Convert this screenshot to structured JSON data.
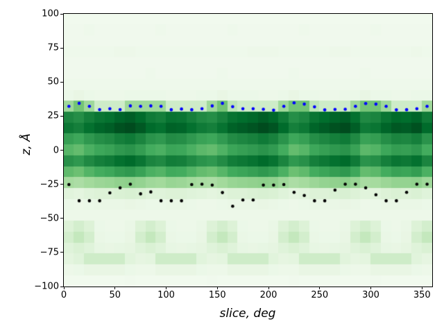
{
  "figure": {
    "background": "#ffffff",
    "spine_color": "#000000"
  },
  "chart_data": {
    "type": "heatmap",
    "title": "",
    "xlabel": "slice, deg",
    "ylabel": "z, Å",
    "xlim": [
      0,
      360
    ],
    "ylim": [
      -100,
      100
    ],
    "grid": false,
    "legend": "none",
    "x_tick_values": [
      0,
      50,
      100,
      150,
      200,
      250,
      300,
      350
    ],
    "x_tick_labels": [
      "0",
      "50",
      "100",
      "150",
      "200",
      "250",
      "300",
      "350"
    ],
    "y_tick_values": [
      100,
      75,
      50,
      25,
      0,
      -25,
      -50,
      -75,
      -100
    ],
    "y_tick_labels": [
      "100",
      "75",
      "50",
      "25",
      "0",
      "−25",
      "−50",
      "−75",
      "−100"
    ],
    "colormap": {
      "name": "Greens",
      "anchors": [
        "#f7fcf5",
        "#e5f5e0",
        "#c7e9c0",
        "#a1d99b",
        "#74c476",
        "#41ab5d",
        "#238b45",
        "#006d2c",
        "#00441b"
      ]
    },
    "heatmap": {
      "cols": 36,
      "rows": 25,
      "x_range_deg": [
        0,
        360
      ],
      "z_range_top_to_bottom": [
        100,
        -100
      ],
      "values": [
        [
          0.04,
          0.04,
          0.04,
          0.04,
          0.04,
          0.04,
          0.04,
          0.04,
          0.04,
          0.04,
          0.04,
          0.04,
          0.04,
          0.04,
          0.04,
          0.04,
          0.04,
          0.04,
          0.04,
          0.04,
          0.04,
          0.04,
          0.04,
          0.04,
          0.04,
          0.04,
          0.04,
          0.04,
          0.04,
          0.04,
          0.04,
          0.04,
          0.04,
          0.04,
          0.04,
          0.04
        ],
        [
          0.05,
          0.05,
          0.06,
          0.05,
          0.05,
          0.05,
          0.05,
          0.05,
          0.05,
          0.06,
          0.05,
          0.05,
          0.05,
          0.05,
          0.05,
          0.05,
          0.06,
          0.05,
          0.05,
          0.05,
          0.05,
          0.05,
          0.05,
          0.06,
          0.05,
          0.05,
          0.05,
          0.05,
          0.05,
          0.05,
          0.06,
          0.05,
          0.05,
          0.05,
          0.05,
          0.05
        ],
        [
          0.05,
          0.05,
          0.05,
          0.05,
          0.05,
          0.05,
          0.05,
          0.05,
          0.05,
          0.05,
          0.05,
          0.05,
          0.05,
          0.05,
          0.05,
          0.05,
          0.05,
          0.05,
          0.05,
          0.05,
          0.05,
          0.05,
          0.05,
          0.05,
          0.05,
          0.05,
          0.05,
          0.05,
          0.05,
          0.05,
          0.05,
          0.05,
          0.05,
          0.05,
          0.05,
          0.05
        ],
        [
          0.06,
          0.06,
          0.06,
          0.06,
          0.06,
          0.07,
          0.07,
          0.06,
          0.06,
          0.06,
          0.06,
          0.06,
          0.06,
          0.06,
          0.06,
          0.06,
          0.06,
          0.06,
          0.07,
          0.07,
          0.07,
          0.06,
          0.06,
          0.06,
          0.06,
          0.06,
          0.07,
          0.07,
          0.06,
          0.06,
          0.06,
          0.06,
          0.06,
          0.06,
          0.07,
          0.06
        ],
        [
          0.05,
          0.05,
          0.05,
          0.05,
          0.05,
          0.05,
          0.05,
          0.05,
          0.05,
          0.05,
          0.05,
          0.05,
          0.05,
          0.05,
          0.05,
          0.05,
          0.05,
          0.05,
          0.05,
          0.05,
          0.05,
          0.05,
          0.05,
          0.05,
          0.05,
          0.05,
          0.05,
          0.05,
          0.05,
          0.05,
          0.05,
          0.05,
          0.05,
          0.05,
          0.05,
          0.05
        ],
        [
          0.05,
          0.05,
          0.05,
          0.05,
          0.05,
          0.05,
          0.05,
          0.05,
          0.06,
          0.05,
          0.05,
          0.05,
          0.05,
          0.05,
          0.05,
          0.06,
          0.05,
          0.05,
          0.05,
          0.05,
          0.05,
          0.05,
          0.06,
          0.05,
          0.05,
          0.05,
          0.05,
          0.05,
          0.05,
          0.06,
          0.05,
          0.05,
          0.05,
          0.05,
          0.05,
          0.05
        ],
        [
          0.06,
          0.06,
          0.06,
          0.06,
          0.06,
          0.06,
          0.06,
          0.06,
          0.06,
          0.06,
          0.06,
          0.06,
          0.06,
          0.06,
          0.06,
          0.06,
          0.06,
          0.06,
          0.06,
          0.06,
          0.06,
          0.06,
          0.06,
          0.06,
          0.06,
          0.06,
          0.06,
          0.06,
          0.06,
          0.06,
          0.06,
          0.06,
          0.06,
          0.06,
          0.06,
          0.06
        ],
        [
          0.08,
          0.1,
          0.08,
          0.07,
          0.07,
          0.07,
          0.08,
          0.08,
          0.08,
          0.08,
          0.07,
          0.07,
          0.07,
          0.08,
          0.08,
          0.1,
          0.08,
          0.08,
          0.08,
          0.07,
          0.07,
          0.08,
          0.1,
          0.08,
          0.08,
          0.07,
          0.07,
          0.08,
          0.08,
          0.1,
          0.08,
          0.08,
          0.07,
          0.07,
          0.08,
          0.08
        ],
        [
          0.38,
          0.5,
          0.38,
          0.22,
          0.22,
          0.22,
          0.38,
          0.38,
          0.38,
          0.38,
          0.22,
          0.22,
          0.22,
          0.22,
          0.38,
          0.5,
          0.28,
          0.22,
          0.22,
          0.22,
          0.22,
          0.38,
          0.5,
          0.5,
          0.28,
          0.22,
          0.22,
          0.22,
          0.38,
          0.5,
          0.5,
          0.38,
          0.22,
          0.22,
          0.22,
          0.38
        ],
        [
          0.77,
          0.74,
          0.8,
          0.84,
          0.86,
          0.9,
          0.92,
          0.88,
          0.82,
          0.8,
          0.85,
          0.84,
          0.8,
          0.76,
          0.74,
          0.79,
          0.85,
          0.87,
          0.89,
          0.92,
          0.89,
          0.82,
          0.74,
          0.77,
          0.84,
          0.87,
          0.9,
          0.92,
          0.86,
          0.76,
          0.78,
          0.84,
          0.88,
          0.87,
          0.9,
          0.82
        ],
        [
          0.83,
          0.8,
          0.86,
          0.9,
          0.92,
          0.96,
          0.98,
          0.94,
          0.88,
          0.86,
          0.91,
          0.9,
          0.86,
          0.82,
          0.8,
          0.85,
          0.91,
          0.93,
          0.95,
          0.98,
          0.95,
          0.88,
          0.8,
          0.83,
          0.9,
          0.93,
          0.96,
          0.98,
          0.92,
          0.82,
          0.84,
          0.9,
          0.94,
          0.93,
          0.96,
          0.88
        ],
        [
          0.67,
          0.64,
          0.7,
          0.74,
          0.76,
          0.8,
          0.82,
          0.78,
          0.72,
          0.7,
          0.75,
          0.74,
          0.7,
          0.66,
          0.64,
          0.69,
          0.75,
          0.77,
          0.79,
          0.82,
          0.79,
          0.72,
          0.64,
          0.67,
          0.74,
          0.77,
          0.8,
          0.82,
          0.76,
          0.66,
          0.68,
          0.74,
          0.78,
          0.77,
          0.8,
          0.72
        ],
        [
          0.57,
          0.54,
          0.6,
          0.64,
          0.66,
          0.7,
          0.72,
          0.68,
          0.62,
          0.6,
          0.65,
          0.64,
          0.6,
          0.56,
          0.54,
          0.59,
          0.65,
          0.67,
          0.69,
          0.72,
          0.69,
          0.62,
          0.54,
          0.57,
          0.64,
          0.67,
          0.7,
          0.72,
          0.66,
          0.56,
          0.58,
          0.64,
          0.68,
          0.67,
          0.7,
          0.62
        ],
        [
          0.73,
          0.7,
          0.76,
          0.8,
          0.82,
          0.86,
          0.88,
          0.84,
          0.78,
          0.76,
          0.81,
          0.8,
          0.76,
          0.72,
          0.7,
          0.75,
          0.81,
          0.83,
          0.85,
          0.88,
          0.85,
          0.78,
          0.7,
          0.73,
          0.8,
          0.83,
          0.86,
          0.88,
          0.82,
          0.72,
          0.74,
          0.8,
          0.84,
          0.83,
          0.86,
          0.78
        ],
        [
          0.55,
          0.52,
          0.58,
          0.62,
          0.64,
          0.68,
          0.7,
          0.66,
          0.6,
          0.58,
          0.63,
          0.62,
          0.58,
          0.54,
          0.52,
          0.57,
          0.63,
          0.65,
          0.67,
          0.7,
          0.67,
          0.6,
          0.52,
          0.55,
          0.62,
          0.65,
          0.68,
          0.7,
          0.64,
          0.54,
          0.56,
          0.62,
          0.66,
          0.65,
          0.68,
          0.6
        ],
        [
          0.36,
          0.34,
          0.37,
          0.39,
          0.4,
          0.42,
          0.43,
          0.41,
          0.38,
          0.37,
          0.4,
          0.39,
          0.37,
          0.35,
          0.34,
          0.37,
          0.4,
          0.41,
          0.42,
          0.43,
          0.42,
          0.38,
          0.34,
          0.36,
          0.39,
          0.41,
          0.42,
          0.43,
          0.4,
          0.35,
          0.36,
          0.39,
          0.41,
          0.41,
          0.42,
          0.38
        ],
        [
          0.14,
          0.13,
          0.15,
          0.16,
          0.16,
          0.17,
          0.18,
          0.17,
          0.15,
          0.15,
          0.16,
          0.16,
          0.15,
          0.14,
          0.13,
          0.14,
          0.16,
          0.16,
          0.17,
          0.18,
          0.17,
          0.15,
          0.13,
          0.14,
          0.16,
          0.16,
          0.17,
          0.18,
          0.16,
          0.14,
          0.14,
          0.16,
          0.17,
          0.16,
          0.17,
          0.15
        ],
        [
          0.08,
          0.07,
          0.08,
          0.09,
          0.09,
          0.09,
          0.1,
          0.09,
          0.08,
          0.08,
          0.09,
          0.09,
          0.08,
          0.07,
          0.07,
          0.08,
          0.09,
          0.09,
          0.09,
          0.1,
          0.09,
          0.08,
          0.07,
          0.08,
          0.09,
          0.09,
          0.09,
          0.1,
          0.09,
          0.07,
          0.08,
          0.09,
          0.09,
          0.09,
          0.09,
          0.08
        ],
        [
          0.07,
          0.07,
          0.07,
          0.07,
          0.07,
          0.07,
          0.07,
          0.07,
          0.07,
          0.07,
          0.07,
          0.07,
          0.07,
          0.07,
          0.07,
          0.07,
          0.07,
          0.07,
          0.07,
          0.07,
          0.07,
          0.07,
          0.07,
          0.07,
          0.07,
          0.07,
          0.07,
          0.07,
          0.07,
          0.07,
          0.07,
          0.07,
          0.07,
          0.07,
          0.07,
          0.07
        ],
        [
          0.16,
          0.2,
          0.16,
          0.08,
          0.07,
          0.07,
          0.09,
          0.16,
          0.2,
          0.16,
          0.08,
          0.07,
          0.07,
          0.09,
          0.16,
          0.2,
          0.16,
          0.08,
          0.07,
          0.07,
          0.09,
          0.16,
          0.2,
          0.16,
          0.08,
          0.07,
          0.07,
          0.09,
          0.16,
          0.2,
          0.16,
          0.08,
          0.07,
          0.09,
          0.16,
          0.2
        ],
        [
          0.2,
          0.26,
          0.2,
          0.09,
          0.08,
          0.08,
          0.1,
          0.2,
          0.26,
          0.2,
          0.09,
          0.08,
          0.08,
          0.1,
          0.2,
          0.26,
          0.2,
          0.09,
          0.08,
          0.08,
          0.1,
          0.2,
          0.26,
          0.2,
          0.09,
          0.08,
          0.08,
          0.1,
          0.2,
          0.26,
          0.2,
          0.09,
          0.08,
          0.1,
          0.2,
          0.26
        ],
        [
          0.15,
          0.17,
          0.15,
          0.11,
          0.1,
          0.11,
          0.12,
          0.15,
          0.17,
          0.15,
          0.11,
          0.1,
          0.11,
          0.12,
          0.15,
          0.17,
          0.15,
          0.11,
          0.1,
          0.11,
          0.12,
          0.15,
          0.17,
          0.15,
          0.11,
          0.1,
          0.11,
          0.12,
          0.15,
          0.17,
          0.15,
          0.11,
          0.1,
          0.12,
          0.15,
          0.17
        ],
        [
          0.13,
          0.15,
          0.22,
          0.22,
          0.22,
          0.22,
          0.14,
          0.12,
          0.13,
          0.22,
          0.22,
          0.22,
          0.22,
          0.14,
          0.12,
          0.13,
          0.22,
          0.22,
          0.22,
          0.22,
          0.14,
          0.12,
          0.13,
          0.22,
          0.22,
          0.22,
          0.22,
          0.14,
          0.12,
          0.13,
          0.22,
          0.22,
          0.22,
          0.22,
          0.14,
          0.12
        ],
        [
          0.07,
          0.08,
          0.1,
          0.1,
          0.1,
          0.1,
          0.08,
          0.07,
          0.07,
          0.1,
          0.1,
          0.1,
          0.1,
          0.08,
          0.07,
          0.07,
          0.1,
          0.1,
          0.1,
          0.1,
          0.08,
          0.07,
          0.07,
          0.1,
          0.1,
          0.1,
          0.1,
          0.08,
          0.07,
          0.07,
          0.1,
          0.1,
          0.1,
          0.1,
          0.08,
          0.07
        ],
        [
          0.04,
          0.04,
          0.04,
          0.04,
          0.04,
          0.04,
          0.05,
          0.04,
          0.04,
          0.04,
          0.04,
          0.04,
          0.04,
          0.04,
          0.05,
          0.04,
          0.04,
          0.04,
          0.04,
          0.04,
          0.04,
          0.04,
          0.05,
          0.04,
          0.04,
          0.04,
          0.04,
          0.04,
          0.04,
          0.04,
          0.05,
          0.04,
          0.04,
          0.04,
          0.04,
          0.04
        ]
      ]
    },
    "series": [
      {
        "name": "upper-surface-dots",
        "marker": "dot",
        "color": "#0000ff",
        "x_deg": [
          5,
          15,
          25,
          35,
          45,
          55,
          65,
          75,
          85,
          95,
          105,
          115,
          125,
          135,
          145,
          155,
          165,
          175,
          185,
          195,
          205,
          215,
          225,
          235,
          245,
          255,
          265,
          275,
          285,
          295,
          305,
          315,
          325,
          335,
          345,
          355
        ],
        "z": [
          32.2,
          34.4,
          32.2,
          29.8,
          30.4,
          29.8,
          32.5,
          32.2,
          32.5,
          32.2,
          29.7,
          30.2,
          29.7,
          30.4,
          32.5,
          34.4,
          31.9,
          30.4,
          30.4,
          30.0,
          29.4,
          32.2,
          34.7,
          33.8,
          31.8,
          29.6,
          29.9,
          30.0,
          32.2,
          34.2,
          33.8,
          32.2,
          29.6,
          29.7,
          30.4,
          32.2
        ]
      },
      {
        "name": "lower-surface-dots",
        "marker": "dot",
        "color": "#000000",
        "x_deg": [
          5,
          15,
          25,
          35,
          45,
          55,
          65,
          75,
          85,
          95,
          105,
          115,
          125,
          135,
          145,
          155,
          165,
          175,
          185,
          195,
          205,
          215,
          225,
          235,
          245,
          255,
          265,
          275,
          285,
          295,
          305,
          315,
          325,
          335,
          345,
          355
        ],
        "z": [
          -25.2,
          -37.1,
          -37.1,
          -37.1,
          -31.3,
          -27.6,
          -24.9,
          -32.0,
          -30.6,
          -37.1,
          -37.1,
          -37.1,
          -25.2,
          -24.9,
          -25.6,
          -31.1,
          -41.1,
          -36.5,
          -36.5,
          -25.6,
          -25.6,
          -25.2,
          -30.9,
          -33.2,
          -37.1,
          -37.1,
          -29.3,
          -24.9,
          -24.9,
          -27.6,
          -32.7,
          -37.1,
          -37.1,
          -30.9,
          -24.9,
          -24.9
        ]
      }
    ]
  }
}
